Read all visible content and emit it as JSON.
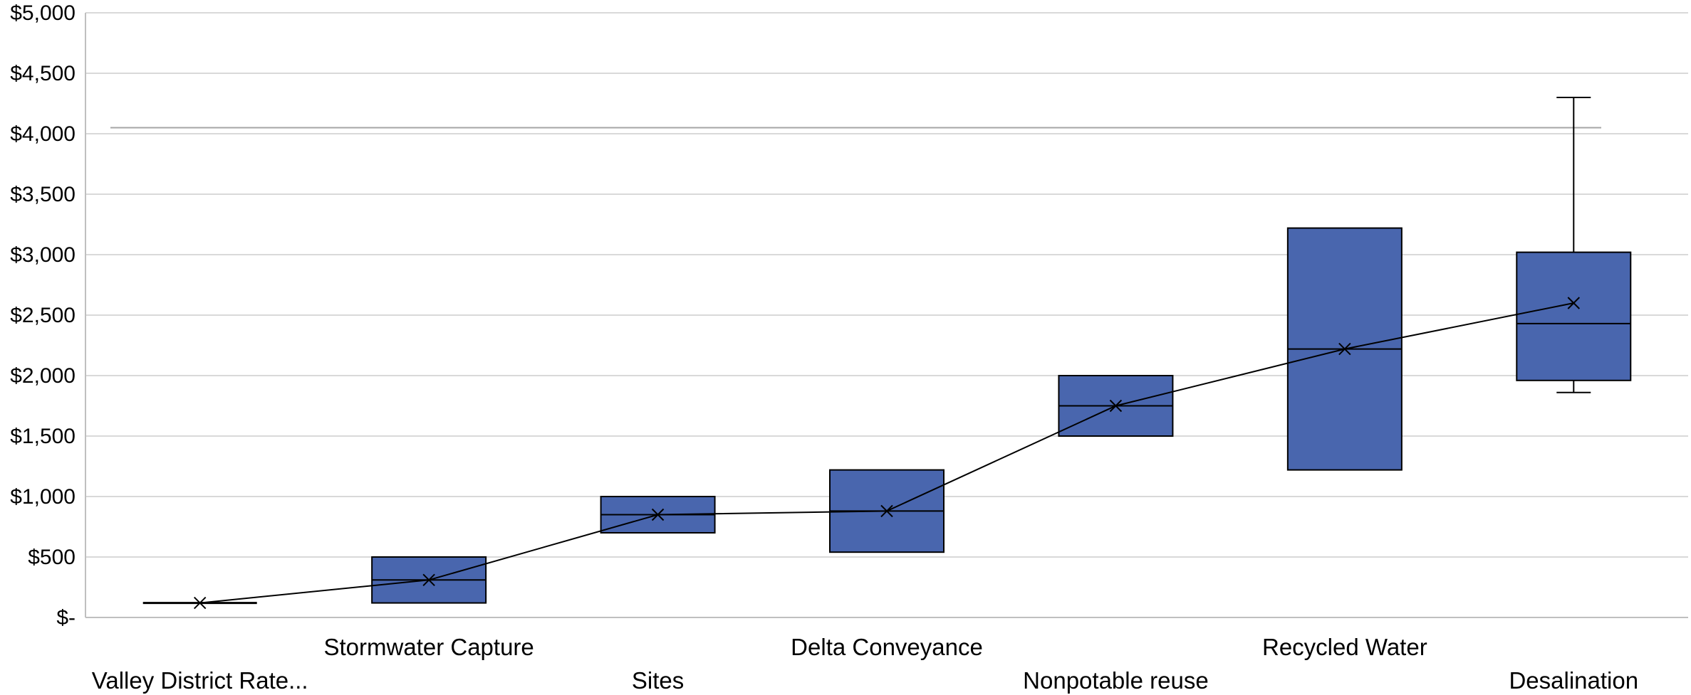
{
  "chart_data": {
    "type": "box",
    "categories": [
      "Valley District Rate...",
      "Stormwater Capture",
      "Sites",
      "Delta Conveyance",
      "Nonpotable reuse",
      "Recycled Water",
      "Desalination"
    ],
    "boxes": [
      {
        "min": 120,
        "q1": 120,
        "median": 120,
        "q3": 120,
        "max": 120,
        "mean": 120
      },
      {
        "min": 120,
        "q1": 120,
        "median": 310,
        "q3": 500,
        "max": 500,
        "mean": 310
      },
      {
        "min": 700,
        "q1": 700,
        "median": 850,
        "q3": 1000,
        "max": 1000,
        "mean": 850
      },
      {
        "min": 540,
        "q1": 540,
        "median": 880,
        "q3": 1220,
        "max": 1220,
        "mean": 880
      },
      {
        "min": 1500,
        "q1": 1500,
        "median": 1750,
        "q3": 2000,
        "max": 2000,
        "mean": 1750
      },
      {
        "min": 1220,
        "q1": 1220,
        "median": 2220,
        "q3": 3220,
        "max": 3220,
        "mean": 2220
      },
      {
        "min": 1860,
        "q1": 1960,
        "median": 2430,
        "q3": 3020,
        "max": 4300,
        "mean": 2600
      }
    ],
    "reference_line": 4050,
    "ylim": [
      0,
      5000
    ],
    "yticks": [
      0,
      500,
      1000,
      1500,
      2000,
      2500,
      3000,
      3500,
      4000,
      4500,
      5000
    ],
    "ytick_labels": [
      "$-",
      "$500",
      "$1,000",
      "$1,500",
      "$2,000",
      "$2,500",
      "$3,000",
      "$3,500",
      "$4,000",
      "$4,500",
      "$5,000"
    ],
    "grid": true,
    "mean_line": true,
    "box_color": "#4966AE",
    "grid_color": "#d9d9d9",
    "axis_color": "#bfbfbf",
    "ref_line_color": "#a6a6a6"
  }
}
